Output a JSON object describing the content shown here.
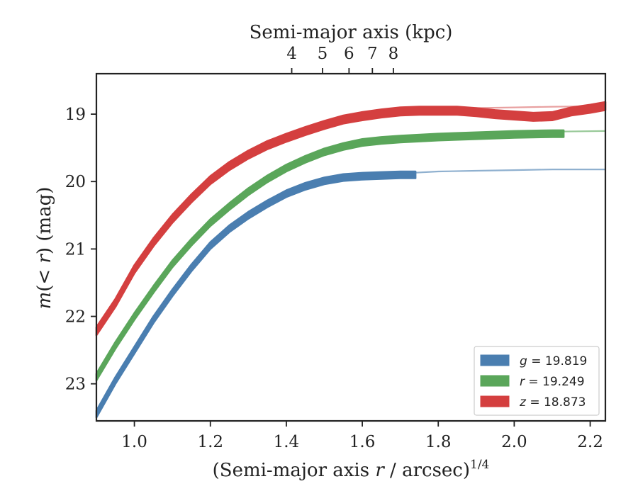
{
  "chart_data": {
    "type": "line",
    "title": "",
    "xlabel_main": "(Semi-major axis ",
    "xlabel_var": "r",
    "xlabel_tail": " / arcsec)",
    "xlabel_exp": "1/4",
    "xlabel_top": "Semi-major axis (kpc)",
    "ylabel_pre": "m",
    "ylabel_mid": "(< ",
    "ylabel_var": "r",
    "ylabel_post": ") (mag)",
    "xlim": [
      0.9,
      2.24
    ],
    "ylim": [
      23.55,
      18.4
    ],
    "x_ticks": [
      "1.0",
      "1.2",
      "1.4",
      "1.6",
      "1.8",
      "2.0",
      "2.2"
    ],
    "x_tick_values": [
      1.0,
      1.2,
      1.4,
      1.6,
      1.8,
      2.0,
      2.2
    ],
    "y_ticks": [
      "19",
      "20",
      "21",
      "22",
      "23"
    ],
    "y_tick_values": [
      19,
      20,
      21,
      22,
      23
    ],
    "top_ticks": [
      "4",
      "5",
      "6",
      "7",
      "8"
    ],
    "top_tick_kpc": [
      4,
      5,
      6,
      7,
      8
    ],
    "kpc_at_x_equals_1": 1.0,
    "grid": false,
    "legend_position": "lower-right",
    "series": [
      {
        "name": "g",
        "legend_var": "g",
        "legend_value": " = 19.819",
        "color": "#4a7eb0",
        "model_color": "#8fb0cf",
        "x": [
          0.9,
          0.95,
          1.0,
          1.05,
          1.1,
          1.15,
          1.2,
          1.25,
          1.3,
          1.35,
          1.4,
          1.45,
          1.5,
          1.55,
          1.6,
          1.65,
          1.7,
          1.74
        ],
        "y": [
          23.45,
          22.95,
          22.5,
          22.05,
          21.65,
          21.28,
          20.95,
          20.7,
          20.5,
          20.33,
          20.18,
          20.07,
          19.99,
          19.94,
          19.92,
          19.91,
          19.9,
          19.9
        ],
        "band": 0.05,
        "model_x": [
          1.3,
          1.4,
          1.5,
          1.6,
          1.7,
          1.8,
          1.9,
          2.0,
          2.1,
          2.24
        ],
        "model_y": [
          20.47,
          20.17,
          20.02,
          19.93,
          19.88,
          19.85,
          19.84,
          19.83,
          19.82,
          19.82
        ]
      },
      {
        "name": "r",
        "legend_var": "r",
        "legend_value": " = 19.249",
        "color": "#5aa65a",
        "model_color": "#98c998",
        "x": [
          0.9,
          0.95,
          1.0,
          1.05,
          1.1,
          1.15,
          1.2,
          1.25,
          1.3,
          1.35,
          1.4,
          1.45,
          1.5,
          1.55,
          1.6,
          1.65,
          1.7,
          1.8,
          1.9,
          2.0,
          2.1,
          2.13
        ],
        "y": [
          22.9,
          22.43,
          22.0,
          21.6,
          21.22,
          20.9,
          20.61,
          20.37,
          20.15,
          19.96,
          19.8,
          19.67,
          19.56,
          19.48,
          19.42,
          19.39,
          19.37,
          19.34,
          19.32,
          19.3,
          19.29,
          19.29
        ],
        "band": 0.05,
        "model_x": [
          1.3,
          1.4,
          1.5,
          1.6,
          1.7,
          1.8,
          1.9,
          2.0,
          2.1,
          2.24
        ],
        "model_y": [
          20.14,
          19.79,
          19.55,
          19.41,
          19.34,
          19.3,
          19.28,
          19.27,
          19.26,
          19.25
        ]
      },
      {
        "name": "z",
        "legend_var": "z",
        "legend_value": " = 18.873",
        "color": "#d43f3f",
        "model_color": "#e8a0a0",
        "x": [
          0.9,
          0.95,
          1.0,
          1.05,
          1.1,
          1.15,
          1.2,
          1.25,
          1.3,
          1.35,
          1.4,
          1.45,
          1.5,
          1.55,
          1.6,
          1.65,
          1.7,
          1.75,
          1.8,
          1.85,
          1.9,
          1.95,
          2.0,
          2.05,
          2.1,
          2.15,
          2.2,
          2.24
        ],
        "y": [
          22.22,
          21.8,
          21.3,
          20.9,
          20.55,
          20.25,
          19.98,
          19.77,
          19.6,
          19.46,
          19.35,
          19.25,
          19.16,
          19.08,
          19.03,
          18.99,
          18.96,
          18.95,
          18.95,
          18.95,
          18.97,
          19.0,
          19.02,
          19.04,
          19.03,
          18.96,
          18.92,
          18.88
        ],
        "band": 0.06,
        "model_x": [
          1.3,
          1.4,
          1.5,
          1.6,
          1.7,
          1.8,
          1.9,
          2.0,
          2.1,
          2.24
        ],
        "model_y": [
          19.58,
          19.34,
          19.15,
          19.03,
          18.96,
          18.93,
          18.91,
          18.9,
          18.89,
          18.88
        ]
      }
    ]
  }
}
